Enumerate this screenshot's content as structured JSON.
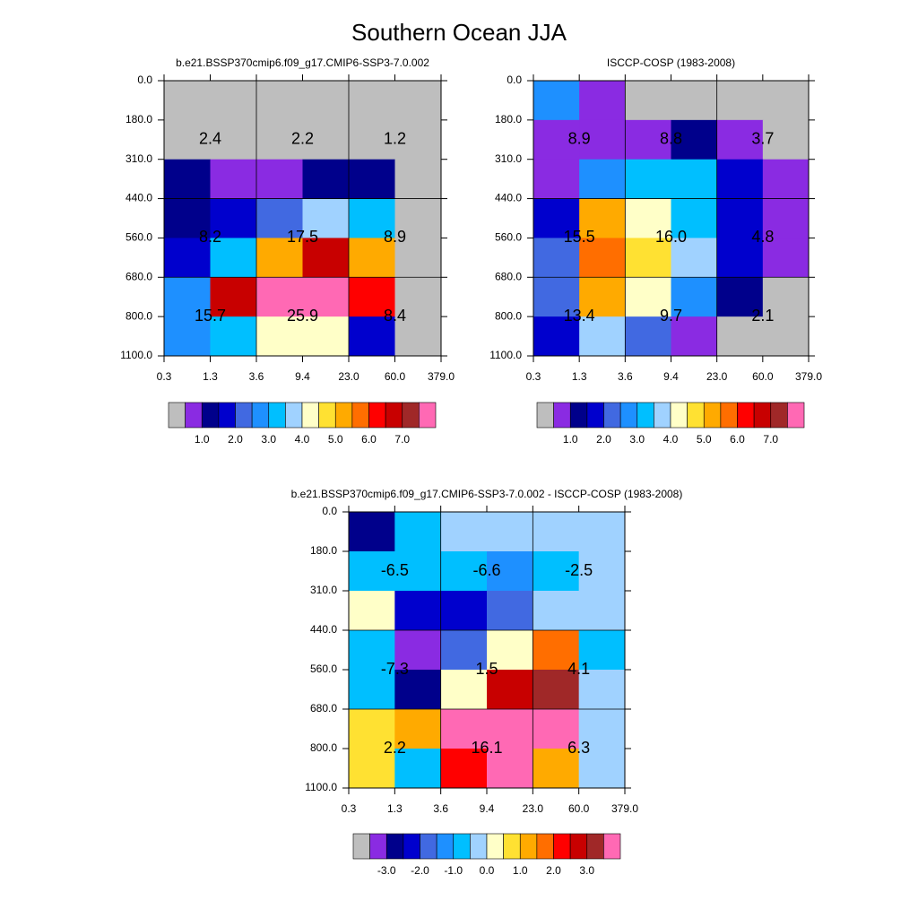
{
  "title": "Southern Ocean JJA",
  "chart_data": [
    {
      "type": "heatmap",
      "title": "b.e21.BSSP370cmip6.f09_g17.CMIP6-SSP3-7.0.002",
      "x_edges": [
        {
          "value": 0.3,
          "label": "0.3"
        },
        {
          "value": 1.3,
          "label": "1.3"
        },
        {
          "value": 3.6,
          "label": "3.6"
        },
        {
          "value": 9.4,
          "label": "9.4"
        },
        {
          "value": 23,
          "label": "23.0"
        },
        {
          "value": 60,
          "label": "60.0"
        },
        {
          "value": 379,
          "label": "379.0"
        }
      ],
      "y_edges": [
        {
          "value": 0,
          "label": "0.0"
        },
        {
          "value": 180,
          "label": "180.0"
        },
        {
          "value": 310,
          "label": "310.0"
        },
        {
          "value": 440,
          "label": "440.0"
        },
        {
          "value": 560,
          "label": "560.0"
        },
        {
          "value": 680,
          "label": "680.0"
        },
        {
          "value": 800,
          "label": "800.0"
        },
        {
          "value": 1100,
          "label": "1100.0"
        }
      ],
      "cells": [
        [
          "#bebebe",
          "#bebebe",
          "#bebebe",
          "#bebebe",
          "#bebebe",
          "#bebebe"
        ],
        [
          "#bebebe",
          "#bebebe",
          "#bebebe",
          "#bebebe",
          "#bebebe",
          "#bebebe"
        ],
        [
          "#00008b",
          "#8a2be2",
          "#8a2be2",
          "#00008b",
          "#00008b",
          "#bebebe"
        ],
        [
          "#00008b",
          "#0000cd",
          "#4169e1",
          "#a0d2ff",
          "#00bfff",
          "#bebebe"
        ],
        [
          "#0000cd",
          "#00bfff",
          "#ffaa00",
          "#c80000",
          "#ffaa00",
          "#bebebe"
        ],
        [
          "#1e90ff",
          "#c80000",
          "#ff69b4",
          "#ff69b4",
          "#ff0000",
          "#bebebe"
        ],
        [
          "#1e90ff",
          "#00bfff",
          "#ffffc8",
          "#ffffc8",
          "#0000cd",
          "#bebebe"
        ]
      ],
      "values": [
        2.4,
        2.2,
        1.2,
        8.2,
        17.5,
        8.9,
        15.7,
        25.9,
        8.4
      ],
      "value_labels": [
        "2.4",
        "2.2",
        "1.2",
        "8.2",
        "17.5",
        "8.9",
        "15.7",
        "25.9",
        "8.4"
      ],
      "colorbar": {
        "colors": [
          "#bebebe",
          "#8a2be2",
          "#00008b",
          "#0000cd",
          "#4169e1",
          "#1e90ff",
          "#00bfff",
          "#a0d2ff",
          "#ffffc8",
          "#ffe132",
          "#ffaa00",
          "#ff6e00",
          "#ff0000",
          "#c80000",
          "#a02828",
          "#ff69b4"
        ],
        "ticks": [
          {
            "value": 1,
            "label": "1.0"
          },
          {
            "value": 2,
            "label": "2.0"
          },
          {
            "value": 3,
            "label": "3.0"
          },
          {
            "value": 4,
            "label": "4.0"
          },
          {
            "value": 5,
            "label": "5.0"
          },
          {
            "value": 6,
            "label": "6.0"
          },
          {
            "value": 7,
            "label": "7.0"
          }
        ]
      }
    },
    {
      "type": "heatmap",
      "title": "ISCCP-COSP (1983-2008)",
      "x_edges": [
        {
          "value": 0.3,
          "label": "0.3"
        },
        {
          "value": 1.3,
          "label": "1.3"
        },
        {
          "value": 3.6,
          "label": "3.6"
        },
        {
          "value": 9.4,
          "label": "9.4"
        },
        {
          "value": 23,
          "label": "23.0"
        },
        {
          "value": 60,
          "label": "60.0"
        },
        {
          "value": 379,
          "label": "379.0"
        }
      ],
      "y_edges": [
        {
          "value": 0,
          "label": "0.0"
        },
        {
          "value": 180,
          "label": "180.0"
        },
        {
          "value": 310,
          "label": "310.0"
        },
        {
          "value": 440,
          "label": "440.0"
        },
        {
          "value": 560,
          "label": "560.0"
        },
        {
          "value": 680,
          "label": "680.0"
        },
        {
          "value": 800,
          "label": "800.0"
        },
        {
          "value": 1100,
          "label": "1100.0"
        }
      ],
      "cells": [
        [
          "#1e90ff",
          "#8a2be2",
          "#bebebe",
          "#bebebe",
          "#bebebe",
          "#bebebe"
        ],
        [
          "#8a2be2",
          "#8a2be2",
          "#8a2be2",
          "#00008b",
          "#8a2be2",
          "#bebebe"
        ],
        [
          "#8a2be2",
          "#1e90ff",
          "#00bfff",
          "#00bfff",
          "#0000cd",
          "#8a2be2"
        ],
        [
          "#0000cd",
          "#ffaa00",
          "#ffffc8",
          "#00bfff",
          "#0000cd",
          "#8a2be2"
        ],
        [
          "#4169e1",
          "#ff6e00",
          "#ffe132",
          "#a0d2ff",
          "#0000cd",
          "#8a2be2"
        ],
        [
          "#4169e1",
          "#ffaa00",
          "#ffffc8",
          "#1e90ff",
          "#00008b",
          "#bebebe"
        ],
        [
          "#0000cd",
          "#a0d2ff",
          "#4169e1",
          "#8a2be2",
          "#bebebe",
          "#bebebe"
        ]
      ],
      "values": [
        8.9,
        8.8,
        3.7,
        15.5,
        16.0,
        4.8,
        13.4,
        9.7,
        2.1
      ],
      "value_labels": [
        "8.9",
        "8.8",
        "3.7",
        "15.5",
        "16.0",
        "4.8",
        "13.4",
        "9.7",
        "2.1"
      ],
      "colorbar": {
        "colors": [
          "#bebebe",
          "#8a2be2",
          "#00008b",
          "#0000cd",
          "#4169e1",
          "#1e90ff",
          "#00bfff",
          "#a0d2ff",
          "#ffffc8",
          "#ffe132",
          "#ffaa00",
          "#ff6e00",
          "#ff0000",
          "#c80000",
          "#a02828",
          "#ff69b4"
        ],
        "ticks": [
          {
            "value": 1,
            "label": "1.0"
          },
          {
            "value": 2,
            "label": "2.0"
          },
          {
            "value": 3,
            "label": "3.0"
          },
          {
            "value": 4,
            "label": "4.0"
          },
          {
            "value": 5,
            "label": "5.0"
          },
          {
            "value": 6,
            "label": "6.0"
          },
          {
            "value": 7,
            "label": "7.0"
          }
        ]
      }
    },
    {
      "type": "heatmap",
      "title": "b.e21.BSSP370cmip6.f09_g17.CMIP6-SSP3-7.0.002 - ISCCP-COSP (1983-2008)",
      "x_edges": [
        {
          "value": 0.3,
          "label": "0.3"
        },
        {
          "value": 1.3,
          "label": "1.3"
        },
        {
          "value": 3.6,
          "label": "3.6"
        },
        {
          "value": 9.4,
          "label": "9.4"
        },
        {
          "value": 23,
          "label": "23.0"
        },
        {
          "value": 60,
          "label": "60.0"
        },
        {
          "value": 379,
          "label": "379.0"
        }
      ],
      "y_edges": [
        {
          "value": 0,
          "label": "0.0"
        },
        {
          "value": 180,
          "label": "180.0"
        },
        {
          "value": 310,
          "label": "310.0"
        },
        {
          "value": 440,
          "label": "440.0"
        },
        {
          "value": 560,
          "label": "560.0"
        },
        {
          "value": 680,
          "label": "680.0"
        },
        {
          "value": 800,
          "label": "800.0"
        },
        {
          "value": 1100,
          "label": "1100.0"
        }
      ],
      "cells": [
        [
          "#00008b",
          "#00bfff",
          "#a0d2ff",
          "#a0d2ff",
          "#a0d2ff",
          "#a0d2ff"
        ],
        [
          "#00bfff",
          "#00bfff",
          "#00bfff",
          "#1e90ff",
          "#00bfff",
          "#a0d2ff"
        ],
        [
          "#ffffc8",
          "#0000cd",
          "#0000cd",
          "#4169e1",
          "#a0d2ff",
          "#a0d2ff"
        ],
        [
          "#00bfff",
          "#8a2be2",
          "#4169e1",
          "#ffffc8",
          "#ff6e00",
          "#00bfff"
        ],
        [
          "#00bfff",
          "#00008b",
          "#ffffc8",
          "#c80000",
          "#a02828",
          "#a0d2ff"
        ],
        [
          "#ffe132",
          "#ffaa00",
          "#ff69b4",
          "#ff69b4",
          "#ff69b4",
          "#a0d2ff"
        ],
        [
          "#ffe132",
          "#00bfff",
          "#ff0000",
          "#ff69b4",
          "#ffaa00",
          "#a0d2ff"
        ]
      ],
      "values": [
        -6.5,
        -6.6,
        -2.5,
        -7.3,
        1.5,
        4.1,
        2.2,
        16.1,
        6.3
      ],
      "value_labels": [
        "-6.5",
        "-6.6",
        "-2.5",
        "-7.3",
        "1.5",
        "4.1",
        "2.2",
        "16.1",
        "6.3"
      ],
      "colorbar": {
        "colors": [
          "#bebebe",
          "#8a2be2",
          "#00008b",
          "#0000cd",
          "#4169e1",
          "#1e90ff",
          "#00bfff",
          "#a0d2ff",
          "#ffffc8",
          "#ffe132",
          "#ffaa00",
          "#ff6e00",
          "#ff0000",
          "#c80000",
          "#a02828",
          "#ff69b4"
        ],
        "ticks": [
          {
            "value": -3,
            "label": "-3.0"
          },
          {
            "value": -2,
            "label": "-2.0"
          },
          {
            "value": -1,
            "label": "-1.0"
          },
          {
            "value": 0,
            "label": "0.0"
          },
          {
            "value": 1,
            "label": "1.0"
          },
          {
            "value": 2,
            "label": "2.0"
          },
          {
            "value": 3,
            "label": "3.0"
          }
        ]
      }
    }
  ]
}
